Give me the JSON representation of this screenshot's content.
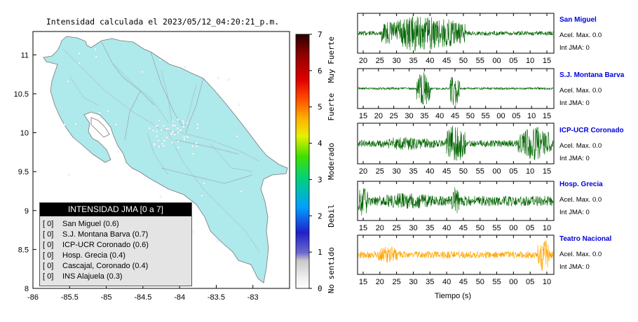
{
  "map": {
    "title": "Intensidad calculada el 2023/05/12_04:20:21_p.m.",
    "x_ticks": [
      "-86",
      "-85.5",
      "-85",
      "-84.5",
      "-84",
      "-83.5",
      "-83"
    ],
    "y_ticks": [
      "8",
      "8.5",
      "9",
      "9.5",
      "10",
      "10.5",
      "11"
    ],
    "xlim": [
      -86,
      -82.5
    ],
    "ylim": [
      8,
      11.3
    ],
    "land_color": "#aee9ec"
  },
  "colorbar": {
    "ticks": [
      "0",
      "1",
      "2",
      "3",
      "4",
      "5",
      "6",
      "7"
    ],
    "categories": [
      "No sentido",
      "Debil",
      "Moderado",
      "Fuerte",
      "Muy Fuerte"
    ]
  },
  "legend": {
    "title": "INTENSIDAD JMA [0 a 7]",
    "items": [
      {
        "badge": "[ 0]",
        "label": "San Miguel (0.6)"
      },
      {
        "badge": "[ 0]",
        "label": "S.J. Montana Barva (0.7)"
      },
      {
        "badge": "[ 0]",
        "label": "ICP-UCR Coronado (0.6)"
      },
      {
        "badge": "[ 0]",
        "label": "Hosp. Grecia (0.4)"
      },
      {
        "badge": "[ 0]",
        "label": "Cascajal, Coronado (0.4)"
      },
      {
        "badge": "[ 0]",
        "label": "INS Alajuela (0.3)"
      }
    ]
  },
  "waveforms": {
    "xlabel": "Tiempo (s)",
    "stations": [
      {
        "name": "San Miguel",
        "accel": "Acel. Max. 0.0",
        "int": "Int JMA: 0",
        "color": "#006400",
        "ticks": [
          "20",
          "25",
          "30",
          "35",
          "40",
          "45",
          "50",
          "55",
          "00",
          "05",
          "10",
          "15"
        ]
      },
      {
        "name": "S.J. Montana Barva",
        "accel": "Acel. Max. 0.0",
        "int": "Int JMA: 0",
        "color": "#006400",
        "ticks": [
          "15",
          "20",
          "25",
          "30",
          "35",
          "40",
          "45",
          "50",
          "55",
          "00",
          "05",
          "10",
          "15"
        ]
      },
      {
        "name": "ICP-UCR Coronado",
        "accel": "Acel. Max. 0.0",
        "int": "Int JMA: 0",
        "color": "#006400",
        "ticks": [
          "20",
          "25",
          "30",
          "35",
          "40",
          "45",
          "50",
          "55",
          "00",
          "05",
          "10",
          "15"
        ]
      },
      {
        "name": "Hosp. Grecia",
        "accel": "Acel. Max. 0.0",
        "int": "Int JMA: 0",
        "color": "#006400",
        "ticks": [
          "15",
          "20",
          "25",
          "30",
          "35",
          "40",
          "45",
          "50",
          "55",
          "00",
          "05",
          "10"
        ]
      },
      {
        "name": "Teatro Nacional",
        "accel": "Acel. Max. 0.0",
        "int": "Int JMA: 0",
        "color": "#ffa500",
        "ticks": [
          "15",
          "20",
          "25",
          "30",
          "35",
          "40",
          "45",
          "50",
          "55",
          "00",
          "05",
          "10"
        ]
      }
    ]
  }
}
